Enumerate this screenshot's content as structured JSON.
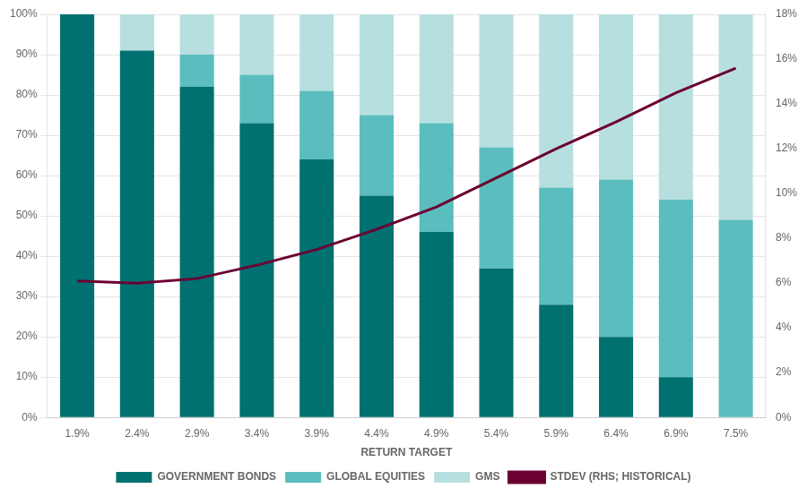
{
  "chart_data": {
    "type": "bar",
    "stacked": true,
    "grid": true,
    "legend": "bottom",
    "xlabel": "RETURN TARGET",
    "categories": [
      "1.9%",
      "2.4%",
      "2.9%",
      "3.4%",
      "3.9%",
      "4.4%",
      "4.9%",
      "5.4%",
      "5.9%",
      "6.4%",
      "6.9%",
      "7.5%"
    ],
    "series": [
      {
        "name": "GOVERNMENT BONDS",
        "type": "bar",
        "color": "#007070",
        "values": [
          100,
          91,
          82,
          73,
          64,
          55,
          46,
          37,
          28,
          20,
          10,
          0
        ]
      },
      {
        "name": "GLOBAL EQUITIES",
        "type": "bar",
        "color": "#5BBDBD",
        "values": [
          0,
          0,
          8,
          12,
          17,
          20,
          27,
          30,
          29,
          39,
          44,
          49
        ]
      },
      {
        "name": "GMS",
        "type": "bar",
        "color": "#B8DFE0",
        "values": [
          0,
          9,
          10,
          15,
          19,
          25,
          27,
          33,
          43,
          41,
          46,
          51
        ]
      },
      {
        "name": "STDEV (RHS; HISTORICAL)",
        "type": "line",
        "axis": "y2",
        "color": "#6B0032",
        "marker": "none",
        "values": [
          6.1,
          6.0,
          6.2,
          6.8,
          7.5,
          8.4,
          9.4,
          10.7,
          12.0,
          13.2,
          14.5,
          15.6
        ]
      }
    ],
    "ylim": [
      0,
      100
    ],
    "yticks": [
      {
        "value": 0,
        "label": "0%"
      },
      {
        "value": 10,
        "label": "10%"
      },
      {
        "value": 20,
        "label": "20%"
      },
      {
        "value": 30,
        "label": "30%"
      },
      {
        "value": 40,
        "label": "40%"
      },
      {
        "value": 50,
        "label": "50%"
      },
      {
        "value": 60,
        "label": "60%"
      },
      {
        "value": 70,
        "label": "70%"
      },
      {
        "value": 80,
        "label": "80%"
      },
      {
        "value": 90,
        "label": "90%"
      },
      {
        "value": 100,
        "label": "100%"
      }
    ],
    "y2lim": [
      0,
      18
    ],
    "y2ticks": [
      {
        "value": 0,
        "label": "0%"
      },
      {
        "value": 2,
        "label": "2%"
      },
      {
        "value": 4,
        "label": "4%"
      },
      {
        "value": 6,
        "label": "6%"
      },
      {
        "value": 8,
        "label": "8%"
      },
      {
        "value": 10,
        "label": "10%"
      },
      {
        "value": 12,
        "label": "12%"
      },
      {
        "value": 14,
        "label": "14%"
      },
      {
        "value": 16,
        "label": "16%"
      },
      {
        "value": 18,
        "label": "18%"
      }
    ]
  }
}
